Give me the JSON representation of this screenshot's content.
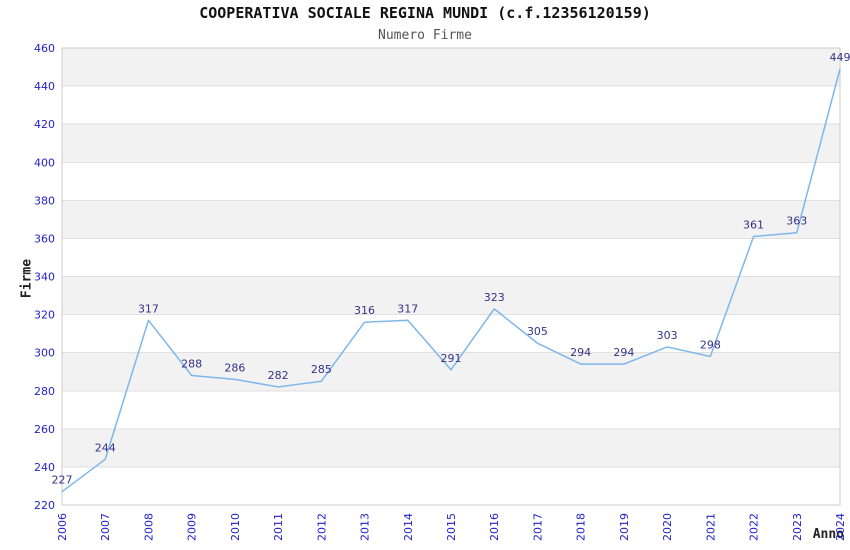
{
  "page": {
    "title": "COOPERATIVA SOCIALE REGINA MUNDI (c.f.12356120159)",
    "subtitle": "Numero Firme"
  },
  "chart_data": {
    "type": "line",
    "title": "COOPERATIVA SOCIALE REGINA MUNDI (c.f.12356120159)",
    "subtitle": "Numero Firme",
    "xlabel": "Anno",
    "ylabel": "Firme",
    "x": [
      2006,
      2007,
      2008,
      2009,
      2010,
      2011,
      2012,
      2013,
      2014,
      2015,
      2016,
      2017,
      2018,
      2019,
      2020,
      2021,
      2022,
      2023,
      2024
    ],
    "values": [
      227,
      244,
      317,
      288,
      286,
      282,
      285,
      316,
      317,
      291,
      323,
      305,
      294,
      294,
      303,
      298,
      361,
      363,
      449
    ],
    "ylim": [
      220,
      460
    ],
    "ytick_step": 20,
    "yticks": [
      220,
      240,
      260,
      280,
      300,
      320,
      340,
      360,
      380,
      400,
      420,
      440,
      460
    ],
    "grid": "horizontal-alternating-bands",
    "legend_position": "none",
    "markers": "none",
    "data_labels": "above-points",
    "colors": {
      "line": "#7db7ea",
      "tick_label": "#2222cc",
      "data_label": "#333388",
      "band": "#f2f2f2",
      "band_alt": "#ffffff",
      "grid_line": "#e0e0e0",
      "border": "#cccccc",
      "title": "#111111",
      "subtitle": "#555555",
      "axis_label": "#222222"
    }
  }
}
